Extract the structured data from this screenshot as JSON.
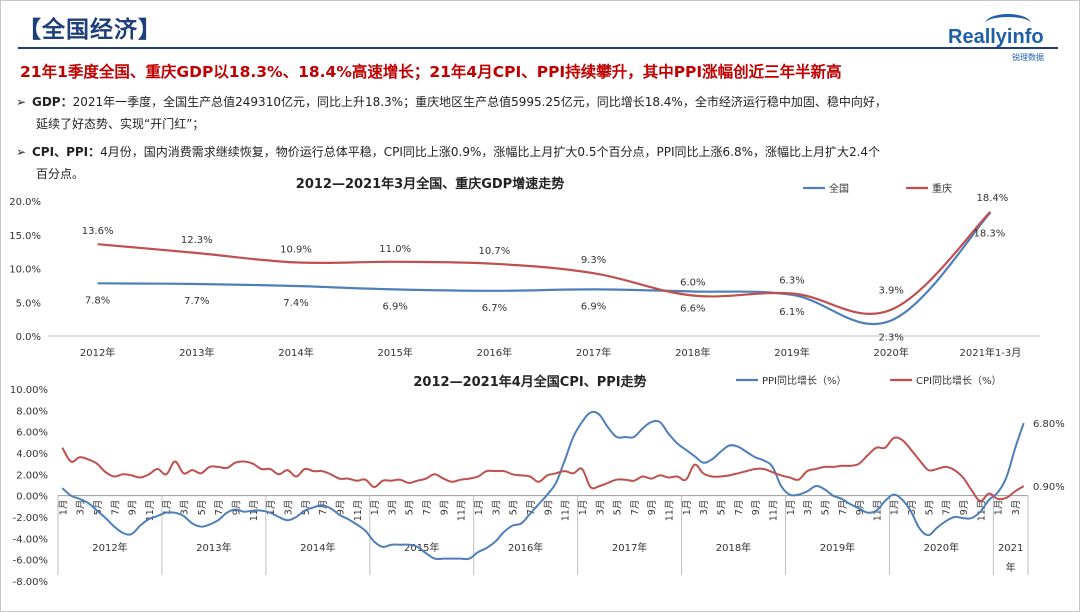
{
  "header": {
    "section_title": "【全国经济】",
    "subtitle": "21年1季度全国、重庆GDP以18.3%、18.4%高速增长；21年4月CPI、PPI持续攀升，其中PPI涨幅创近三年半新高"
  },
  "logo": {
    "text": "Reallyinfo",
    "sub": "锐理数据"
  },
  "bullets": [
    {
      "key": "GDP：",
      "line1": "2021年一季度，全国生产总值249310亿元，同比上升18.3%；重庆地区生产总值5995.25亿元，同比增长18.4%，全市经济运行稳中加固、稳中向好，",
      "line2": "延续了好态势、实现“开门红”；"
    },
    {
      "key": "CPI、PPI：",
      "line1": "4月份，国内消费需求继续恢复，物价运行总体平稳，CPI同比上涨0.9%，涨幅比上月扩大0.5个百分点，PPI同比上涨6.8%，涨幅比上月扩大2.4个",
      "line2": "百分点。"
    }
  ],
  "chart_data": [
    {
      "type": "line",
      "title": "2012—2021年3月全国、重庆GDP增速走势",
      "categories": [
        "2012年",
        "2013年",
        "2014年",
        "2015年",
        "2016年",
        "2017年",
        "2018年",
        "2019年",
        "2020年",
        "2021年1-3月"
      ],
      "ylim": [
        0,
        20
      ],
      "yticks": [
        "0.0%",
        "5.0%",
        "10.0%",
        "15.0%",
        "20.0%"
      ],
      "series": [
        {
          "name": "全国",
          "color": "#4f7fba",
          "values": [
            7.8,
            7.7,
            7.4,
            6.9,
            6.7,
            6.9,
            6.6,
            6.1,
            2.3,
            18.3
          ],
          "labels": [
            "7.8%",
            "7.7%",
            "7.4%",
            "6.9%",
            "6.7%",
            "6.9%",
            "6.6%",
            "6.1%",
            "2.3%",
            "18.3%"
          ]
        },
        {
          "name": "重庆",
          "color": "#c0504d",
          "values": [
            13.6,
            12.3,
            10.9,
            11.0,
            10.7,
            9.3,
            6.0,
            6.3,
            3.9,
            18.4
          ],
          "labels": [
            "13.6%",
            "12.3%",
            "10.9%",
            "11.0%",
            "10.7%",
            "9.3%",
            "6.0%",
            "6.3%",
            "3.9%",
            "18.4%"
          ]
        }
      ]
    },
    {
      "type": "line",
      "title": "2012—2021年4月全国CPI、PPI走势",
      "ylim": [
        -8,
        10
      ],
      "yticks": [
        "-8.00%",
        "-6.00%",
        "-4.00%",
        "-2.00%",
        "0.00%",
        "2.00%",
        "4.00%",
        "6.00%",
        "8.00%",
        "10.00%"
      ],
      "month_labels": [
        "1月",
        "3月",
        "5月",
        "7月",
        "9月",
        "11月"
      ],
      "years": [
        "2012年",
        "2013年",
        "2014年",
        "2015年",
        "2016年",
        "2017年",
        "2018年",
        "2019年",
        "2020年"
      ],
      "last_year_label": [
        "2021",
        "年"
      ],
      "last_year_months": [
        "1月",
        "3月"
      ],
      "series": [
        {
          "name": "PPI同比增长（%）",
          "color": "#4f7fba",
          "end_label": "6.80%",
          "values": [
            0.7,
            0.0,
            -0.3,
            -0.7,
            -1.4,
            -2.1,
            -2.9,
            -3.5,
            -3.6,
            -2.8,
            -2.2,
            -1.9,
            -1.6,
            -1.6,
            -1.9,
            -2.6,
            -2.9,
            -2.7,
            -2.3,
            -1.6,
            -1.3,
            -1.5,
            -1.4,
            -1.4,
            -1.6,
            -2.0,
            -2.3,
            -2.0,
            -1.4,
            -1.1,
            -0.9,
            -1.2,
            -1.8,
            -2.2,
            -2.7,
            -3.3,
            -4.3,
            -4.8,
            -4.6,
            -4.6,
            -4.6,
            -4.8,
            -5.4,
            -5.9,
            -5.9,
            -5.9,
            -5.9,
            -5.9,
            -5.3,
            -4.9,
            -4.3,
            -3.4,
            -2.8,
            -2.6,
            -1.7,
            -0.8,
            0.1,
            1.2,
            3.3,
            5.5,
            6.9,
            7.8,
            7.6,
            6.4,
            5.5,
            5.5,
            5.5,
            6.3,
            6.9,
            6.9,
            5.8,
            4.9,
            4.3,
            3.7,
            3.1,
            3.4,
            4.1,
            4.7,
            4.6,
            4.1,
            3.6,
            3.3,
            2.7,
            0.9,
            0.1,
            0.1,
            0.4,
            0.9,
            0.6,
            0.0,
            -0.3,
            -0.8,
            -1.2,
            -1.6,
            -1.4,
            -0.5,
            0.1,
            -0.4,
            -1.5,
            -3.1,
            -3.7,
            -3.0,
            -2.4,
            -2.0,
            -2.1,
            -2.1,
            -1.5,
            -0.4,
            0.3,
            1.7,
            4.4,
            6.8
          ]
        },
        {
          "name": "CPI同比增长（%）",
          "color": "#c0504d",
          "end_label": "0.90%",
          "values": [
            4.5,
            3.2,
            3.6,
            3.4,
            3.0,
            2.2,
            1.8,
            2.0,
            1.9,
            1.7,
            2.0,
            2.5,
            2.0,
            3.2,
            2.1,
            2.4,
            2.1,
            2.7,
            2.7,
            2.6,
            3.1,
            3.2,
            3.0,
            2.5,
            2.5,
            2.0,
            2.4,
            1.8,
            2.5,
            2.3,
            2.3,
            2.0,
            1.6,
            1.6,
            1.4,
            1.5,
            0.8,
            1.4,
            1.4,
            1.5,
            1.2,
            1.4,
            1.6,
            2.0,
            1.6,
            1.3,
            1.5,
            1.6,
            1.8,
            2.3,
            2.3,
            2.3,
            2.0,
            1.9,
            1.8,
            1.3,
            1.9,
            2.1,
            2.3,
            2.1,
            2.5,
            0.8,
            0.9,
            1.2,
            1.5,
            1.5,
            1.4,
            1.8,
            1.6,
            1.9,
            1.7,
            1.8,
            1.5,
            2.9,
            2.1,
            1.8,
            1.8,
            1.9,
            2.1,
            2.3,
            2.5,
            2.5,
            2.2,
            1.9,
            1.7,
            1.5,
            2.3,
            2.5,
            2.7,
            2.7,
            2.8,
            2.8,
            3.0,
            3.8,
            4.5,
            4.5,
            5.4,
            5.2,
            4.3,
            3.3,
            2.4,
            2.5,
            2.7,
            2.4,
            1.7,
            0.5,
            -0.5,
            0.2,
            -0.3,
            -0.2,
            0.4,
            0.9
          ]
        }
      ]
    }
  ]
}
